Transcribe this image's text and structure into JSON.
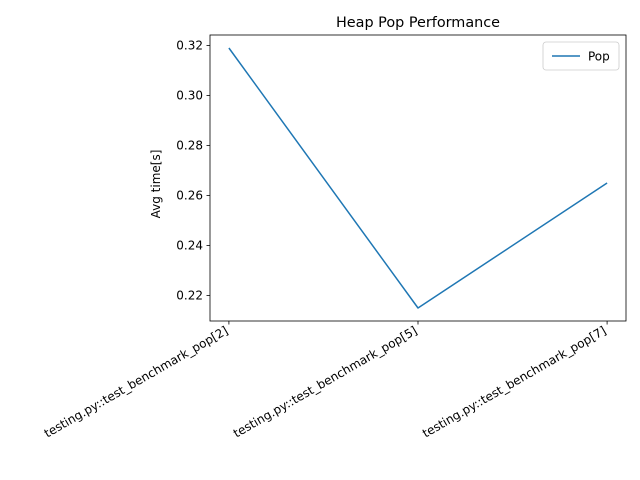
{
  "chart_data": {
    "type": "line",
    "title": "Heap Pop Performance",
    "xlabel": "",
    "ylabel": "Avg time[s]",
    "categories": [
      "testing.py::test_benchmark_pop[2]",
      "testing.py::test_benchmark_pop[5]",
      "testing.py::test_benchmark_pop[7]"
    ],
    "series": [
      {
        "name": "Pop",
        "values": [
          0.319,
          0.215,
          0.265
        ],
        "color": "#1f77b4"
      }
    ],
    "ylim": [
      0.2098,
      0.3242
    ],
    "yticks": [
      "0.22",
      "0.24",
      "0.26",
      "0.28",
      "0.30",
      "0.32"
    ],
    "ytick_values": [
      0.22,
      0.24,
      0.26,
      0.28,
      0.3,
      0.32
    ],
    "grid": false,
    "legend_position": "top-right"
  }
}
